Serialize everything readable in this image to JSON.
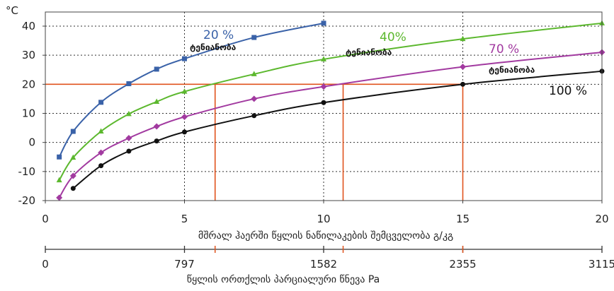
{
  "chart_data": {
    "type": "line",
    "y_unit": "°C",
    "xlabel": "მშრალ ჰაერში წყლის ნაწილაკების შემცველობა გ/კგ",
    "x2label": "წყლის ორთქლის პარციალური წნევა Pa",
    "xlim": [
      0,
      20
    ],
    "ylim": [
      -20,
      45
    ],
    "x_ticks": [
      "0",
      "5",
      "10",
      "15",
      "20"
    ],
    "y_ticks": [
      "-20",
      "-10",
      "0",
      "10",
      "20",
      "30",
      "40"
    ],
    "x2_ticks": [
      {
        "x": 0,
        "label": "0"
      },
      {
        "x": 5,
        "label": "797"
      },
      {
        "x": 10,
        "label": "1582"
      },
      {
        "x": 15,
        "label": "2355"
      },
      {
        "x": 20,
        "label": "3115"
      }
    ],
    "x2_red_marks": [
      6.1,
      10.7,
      15
    ],
    "grid": true,
    "reference_line": {
      "y": 20,
      "drops": [
        6.1,
        10.7,
        15
      ]
    },
    "series": [
      {
        "name": "20 %",
        "sublabel": "ტენიანობა",
        "color": "#3a62a8",
        "marker": "square",
        "points": [
          [
            0.5,
            -5
          ],
          [
            1,
            3.8
          ],
          [
            2,
            13.8
          ],
          [
            3,
            20.2
          ],
          [
            4,
            25.2
          ],
          [
            5,
            28.8
          ],
          [
            7.5,
            36.1
          ],
          [
            10,
            41
          ]
        ]
      },
      {
        "name": "40%",
        "sublabel": "ტენიანობა",
        "color": "#5cb82e",
        "marker": "triangle",
        "points": [
          [
            0.5,
            -13
          ],
          [
            1,
            -5.2
          ],
          [
            2,
            3.8
          ],
          [
            3,
            9.8
          ],
          [
            4,
            14
          ],
          [
            5,
            17.5
          ],
          [
            7.5,
            23.5
          ],
          [
            10,
            28.6
          ],
          [
            15,
            35.6
          ],
          [
            20,
            41
          ]
        ]
      },
      {
        "name": "70 %",
        "sublabel": "ტენიანობა",
        "color": "#a23aa0",
        "marker": "diamond",
        "points": [
          [
            0.5,
            -19
          ],
          [
            1,
            -11.5
          ],
          [
            2,
            -3.5
          ],
          [
            3,
            1.5
          ],
          [
            4,
            5.5
          ],
          [
            5,
            8.8
          ],
          [
            7.5,
            15
          ],
          [
            10,
            19.2
          ],
          [
            15,
            26
          ],
          [
            20,
            31
          ]
        ]
      },
      {
        "name": "100 %",
        "color": "#111111",
        "marker": "circle",
        "points": [
          [
            1,
            -15.8
          ],
          [
            2,
            -8
          ],
          [
            3,
            -3
          ],
          [
            4,
            0.5
          ],
          [
            5,
            3.6
          ],
          [
            7.5,
            9.2
          ],
          [
            10,
            13.7
          ],
          [
            15,
            20
          ],
          [
            20,
            24.5
          ]
        ]
      }
    ]
  }
}
